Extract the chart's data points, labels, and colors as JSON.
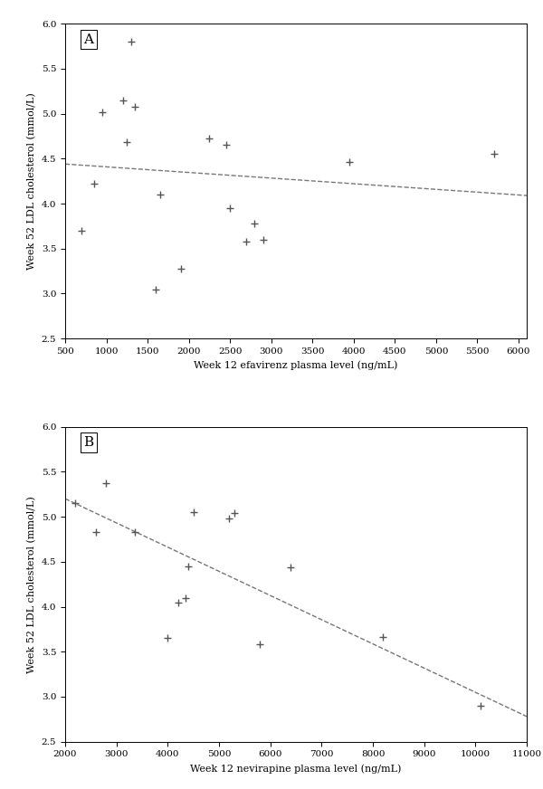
{
  "panel_A": {
    "label": "A",
    "x": [
      700,
      850,
      950,
      1200,
      1250,
      1300,
      1350,
      1600,
      1650,
      1900,
      2250,
      2450,
      2500,
      2700,
      2800,
      2900,
      3950,
      5700
    ],
    "y": [
      3.7,
      4.22,
      5.02,
      5.15,
      4.68,
      5.8,
      5.08,
      3.05,
      4.1,
      3.28,
      4.72,
      4.65,
      3.95,
      3.58,
      3.78,
      3.6,
      4.46,
      4.55
    ],
    "trendline_x": [
      500,
      6100
    ],
    "trendline_y": [
      4.44,
      4.09
    ],
    "xlabel": "Week 12 efavirenz plasma level (ng/mL)",
    "ylabel": "Week 52 LDL cholesterol (mmol/L)",
    "xlim": [
      500,
      6100
    ],
    "ylim": [
      2.5,
      6.0
    ],
    "xticks": [
      500,
      1000,
      1500,
      2000,
      2500,
      3000,
      3500,
      4000,
      4500,
      5000,
      5500,
      6000
    ],
    "yticks": [
      2.5,
      3.0,
      3.5,
      4.0,
      4.5,
      5.0,
      5.5,
      6.0
    ]
  },
  "panel_B": {
    "label": "B",
    "x": [
      2200,
      2600,
      2800,
      3350,
      4000,
      4200,
      4350,
      4400,
      4500,
      5200,
      5300,
      5800,
      6400,
      8200,
      10100
    ],
    "y": [
      5.15,
      4.83,
      5.37,
      4.83,
      3.65,
      4.05,
      4.1,
      4.45,
      5.05,
      4.98,
      5.04,
      3.58,
      4.44,
      3.66,
      2.9
    ],
    "trendline_x": [
      2000,
      11000
    ],
    "trendline_y": [
      5.2,
      2.78
    ],
    "xlabel": "Week 12 nevirapine plasma level (ng/mL)",
    "ylabel": "Week 52 LDL cholesterol (mmol/L)",
    "xlim": [
      2000,
      11000
    ],
    "ylim": [
      2.5,
      6.0
    ],
    "xticks": [
      2000,
      3000,
      4000,
      5000,
      6000,
      7000,
      8000,
      9000,
      10000,
      11000
    ],
    "yticks": [
      2.5,
      3.0,
      3.5,
      4.0,
      4.5,
      5.0,
      5.5,
      6.0
    ]
  },
  "marker": "+",
  "marker_size": 6,
  "marker_linewidth": 1.0,
  "marker_color": "#555555",
  "line_color": "#777777",
  "line_style": "--",
  "line_width": 1.0,
  "label_fontsize": 8,
  "tick_fontsize": 7.5,
  "panel_label_fontsize": 11,
  "bg_color": "#ffffff",
  "axes_color": "#000000",
  "font_family": "DejaVu Serif"
}
